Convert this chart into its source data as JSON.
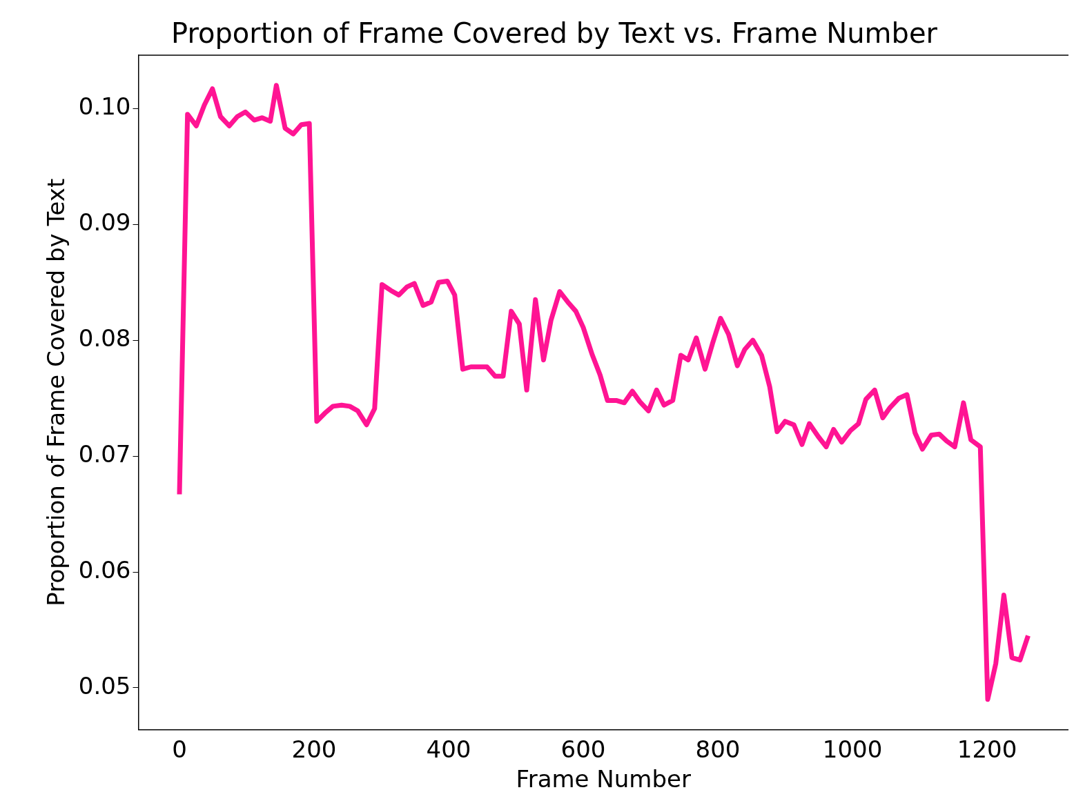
{
  "chart_data": {
    "type": "line",
    "title": "Proportion of Frame Covered by Text vs. Frame Number",
    "xlabel": "Frame Number",
    "ylabel": "Proportion of Frame Covered by Text",
    "x": [
      0,
      12,
      25,
      37,
      49,
      61,
      74,
      86,
      98,
      111,
      123,
      135,
      144,
      157,
      169,
      181,
      193,
      204,
      216,
      228,
      241,
      253,
      265,
      278,
      290,
      301,
      314,
      326,
      338,
      349,
      362,
      374,
      385,
      398,
      409,
      421,
      433,
      446,
      457,
      469,
      481,
      493,
      505,
      516,
      529,
      541,
      552,
      565,
      577,
      589,
      600,
      613,
      625,
      636,
      649,
      661,
      673,
      684,
      697,
      709,
      720,
      733,
      745,
      756,
      768,
      781,
      792,
      804,
      816,
      829,
      840,
      852,
      865,
      877,
      888,
      900,
      913,
      925,
      936,
      949,
      961,
      972,
      984,
      997,
      1009,
      1020,
      1033,
      1045,
      1056,
      1069,
      1081,
      1093,
      1104,
      1117,
      1129,
      1140,
      1152,
      1165,
      1176,
      1190,
      1201,
      1213,
      1225,
      1237,
      1249,
      1261
    ],
    "series": [
      {
        "color": "#ff1493",
        "values": [
          0.0667,
          0.0995,
          0.0985,
          0.1003,
          0.1017,
          0.0993,
          0.0985,
          0.0993,
          0.0997,
          0.099,
          0.0992,
          0.0989,
          0.102,
          0.0983,
          0.0978,
          0.0986,
          0.0987,
          0.073,
          0.0737,
          0.0743,
          0.0744,
          0.0743,
          0.0739,
          0.0727,
          0.0741,
          0.0848,
          0.0843,
          0.0839,
          0.0846,
          0.0849,
          0.083,
          0.0833,
          0.085,
          0.0851,
          0.0839,
          0.0775,
          0.0777,
          0.0777,
          0.0777,
          0.0769,
          0.0769,
          0.0825,
          0.0814,
          0.0757,
          0.0835,
          0.0783,
          0.0817,
          0.0842,
          0.0833,
          0.0825,
          0.0811,
          0.0788,
          0.077,
          0.0748,
          0.0748,
          0.0746,
          0.0756,
          0.0747,
          0.0739,
          0.0757,
          0.0744,
          0.0748,
          0.0787,
          0.0783,
          0.0802,
          0.0775,
          0.0797,
          0.0819,
          0.0805,
          0.0778,
          0.0792,
          0.08,
          0.0787,
          0.076,
          0.0721,
          0.073,
          0.0727,
          0.071,
          0.0728,
          0.0717,
          0.0708,
          0.0723,
          0.0712,
          0.0722,
          0.0728,
          0.0749,
          0.0757,
          0.0733,
          0.0742,
          0.075,
          0.0753,
          0.072,
          0.0706,
          0.0718,
          0.0719,
          0.0713,
          0.0708,
          0.0746,
          0.0714,
          0.0708,
          0.049,
          0.0521,
          0.058,
          0.0526,
          0.0524,
          0.0545
        ]
      }
    ],
    "xlim": [
      -61,
      1321
    ],
    "xticks": [
      0,
      200,
      400,
      600,
      800,
      1000,
      1200
    ],
    "ylim": [
      0.0464,
      0.1046
    ],
    "yticks": [
      {
        "value": 0.05,
        "label": "0.05"
      },
      {
        "value": 0.06,
        "label": "0.06"
      },
      {
        "value": 0.07,
        "label": "0.07"
      },
      {
        "value": 0.08,
        "label": "0.08"
      },
      {
        "value": 0.09,
        "label": "0.09"
      },
      {
        "value": 0.1,
        "label": "0.10"
      }
    ],
    "grid": false,
    "legend": false,
    "marker": "none",
    "line_style": "solid"
  }
}
